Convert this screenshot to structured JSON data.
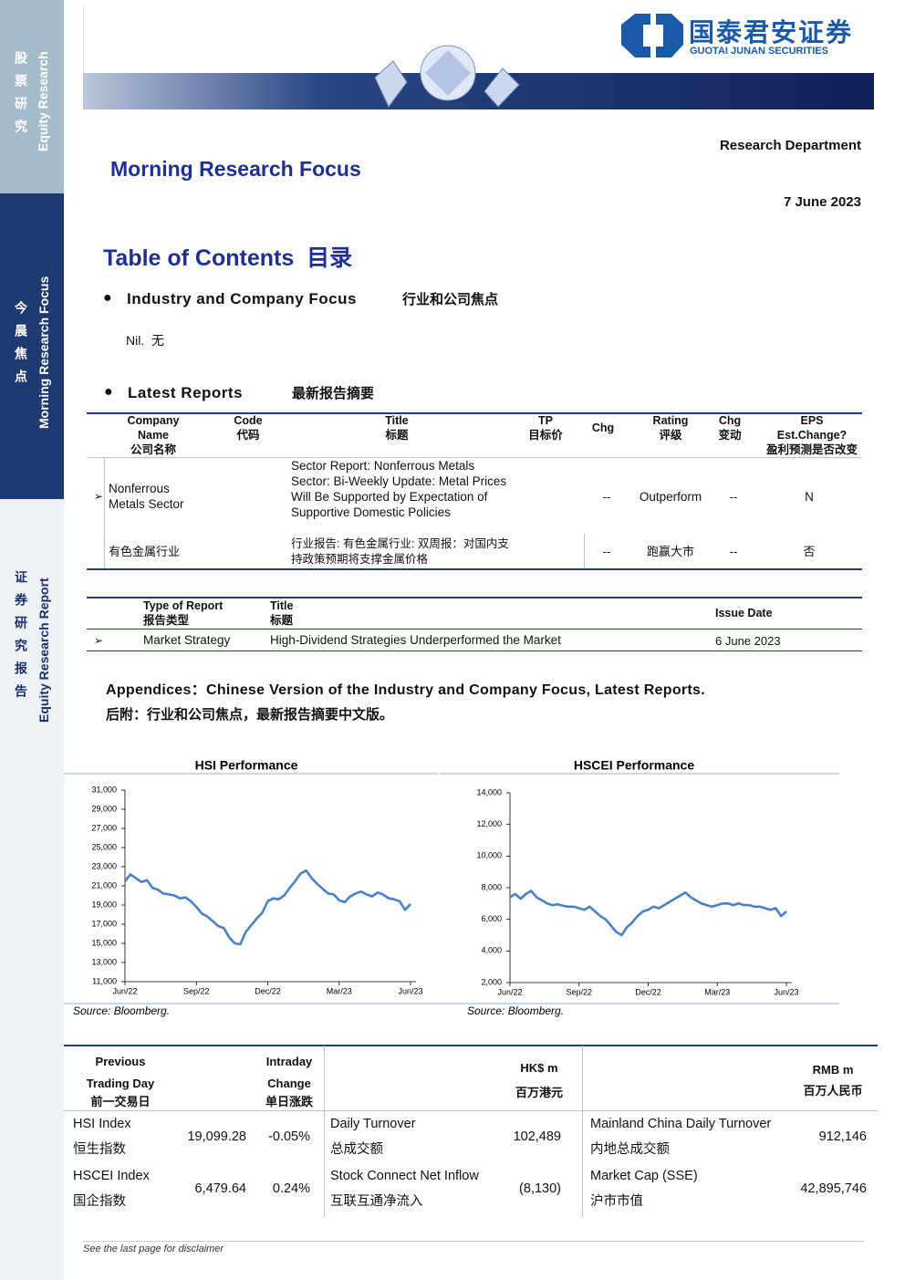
{
  "sidebar": {
    "top_cn": "股票研究",
    "top_en": "Equity Research",
    "mid_cn": "今晨焦点",
    "mid_en": "Morning Research Focus",
    "bottom_cn": "证券研究报告",
    "bottom_en": "Equity Research Report"
  },
  "header": {
    "logo_cn": "国泰君安证券",
    "logo_en": "GUOTAI JUNAN SECURITIES",
    "department": "Research Department",
    "title": "Morning Research Focus",
    "date": "7 June 2023"
  },
  "toc": {
    "title": "Table of Contents",
    "title_cn": "目录",
    "focus_heading": "Industry and Company Focus",
    "focus_heading_cn": "行业和公司焦点",
    "focus_body": "Nil.",
    "focus_body_cn": "无",
    "latest_heading": "Latest Reports",
    "latest_heading_cn": "最新报告摘要"
  },
  "reports_table": {
    "headers": [
      {
        "en": "Company Name",
        "cn": "公司名称"
      },
      {
        "en": "Code",
        "cn": "代码"
      },
      {
        "en": "Title",
        "cn": "标题"
      },
      {
        "en": "TP",
        "cn": "目标价"
      },
      {
        "en": "Chg"
      },
      {
        "en": "Rating",
        "cn": "评级"
      },
      {
        "en": "Chg",
        "cn": "变动"
      },
      {
        "en": "EPS Est.Change?",
        "cn": "盈利预测是否改变"
      }
    ],
    "rows": [
      {
        "company": "Nonferrous Metals Sector",
        "title": "Sector Report: Nonferrous Metals Sector: Bi-Weekly Update: Metal Prices Will Be Supported by Expectation of Supportive Domestic Policies",
        "chg": "--",
        "rating": "Outperform",
        "rating_chg": "--",
        "eps_change": "N"
      },
      {
        "company": "有色金属行业",
        "title": "行业报告: 有色金属行业: 双周报：对国内支持政策预期将支撑金属价格",
        "chg": "--",
        "rating": "跑赢大市",
        "rating_chg": "--",
        "eps_change": "否"
      }
    ]
  },
  "strategy_table": {
    "headers": [
      {
        "en": "Type of Report",
        "cn": "报告类型"
      },
      {
        "en": "Title",
        "cn": "标题"
      },
      {
        "en": "Issue Date"
      }
    ],
    "rows": [
      {
        "type": "Market Strategy",
        "title": "High-Dividend Strategies Underperformed the Market",
        "date": "6 June 2023"
      }
    ]
  },
  "appendices": {
    "en": "Appendices：Chinese Version of the Industry and Company Focus, Latest Reports.",
    "cn": "后附：行业和公司焦点，最新报告摘要中文版。"
  },
  "chart_data": [
    {
      "type": "line",
      "title": "HSI Performance",
      "source": "Source: Bloomberg.",
      "color": "#4a80c8",
      "categories": [
        "Jun/22",
        null,
        null,
        null,
        null,
        null,
        null,
        null,
        null,
        null,
        null,
        null,
        null,
        "Sep/22",
        null,
        null,
        null,
        null,
        null,
        null,
        null,
        null,
        null,
        null,
        null,
        null,
        "Dec/22",
        null,
        null,
        null,
        null,
        null,
        null,
        null,
        null,
        null,
        null,
        null,
        null,
        "Mar/23",
        null,
        null,
        null,
        null,
        null,
        null,
        null,
        null,
        null,
        null,
        null,
        null,
        "Jun/23"
      ],
      "series": [
        {
          "color": "#4a80c8",
          "values": [
            21500,
            22200,
            21800,
            21400,
            21600,
            20800,
            20600,
            20200,
            20100,
            20000,
            19700,
            19800,
            19400,
            18800,
            18100,
            17800,
            17300,
            16800,
            16600,
            15600,
            15000,
            14900,
            16200,
            16900,
            17600,
            18200,
            19400,
            19700,
            19600,
            20000,
            20800,
            21500,
            22300,
            22600,
            21800,
            21200,
            20700,
            20200,
            20100,
            19500,
            19300,
            19900,
            20200,
            20400,
            20100,
            19900,
            20300,
            20100,
            19700,
            19600,
            19400,
            18500,
            19100
          ]
        }
      ],
      "ylim": [
        11000,
        31000
      ],
      "yticks": [
        {
          "value": 11000,
          "label": "11,000"
        },
        {
          "value": 13000,
          "label": "13,000"
        },
        {
          "value": 15000,
          "label": "15,000"
        },
        {
          "value": 17000,
          "label": "17,000"
        },
        {
          "value": 19000,
          "label": "19,000"
        },
        {
          "value": 21000,
          "label": "21,000"
        },
        {
          "value": 23000,
          "label": "23,000"
        },
        {
          "value": 25000,
          "label": "25,000"
        },
        {
          "value": 27000,
          "label": "27,000"
        },
        {
          "value": 29000,
          "label": "29,000"
        },
        {
          "value": 31000,
          "label": "31,000"
        }
      ]
    },
    {
      "type": "line",
      "title": "HSCEI Performance",
      "source": "Source: Bloomberg.",
      "color": "#4a80c8",
      "categories": [
        "Jun/22",
        null,
        null,
        null,
        null,
        null,
        null,
        null,
        null,
        null,
        null,
        null,
        null,
        "Sep/22",
        null,
        null,
        null,
        null,
        null,
        null,
        null,
        null,
        null,
        null,
        null,
        null,
        "Dec/22",
        null,
        null,
        null,
        null,
        null,
        null,
        null,
        null,
        null,
        null,
        null,
        null,
        "Mar/23",
        null,
        null,
        null,
        null,
        null,
        null,
        null,
        null,
        null,
        null,
        null,
        null,
        "Jun/23"
      ],
      "series": [
        {
          "color": "#4a80c8",
          "values": [
            7400,
            7600,
            7300,
            7600,
            7800,
            7400,
            7200,
            7000,
            6900,
            6950,
            6850,
            6800,
            6800,
            6700,
            6600,
            6800,
            6500,
            6200,
            6000,
            5600,
            5200,
            5000,
            5500,
            5800,
            6200,
            6500,
            6600,
            6800,
            6700,
            6900,
            7100,
            7300,
            7500,
            7700,
            7400,
            7200,
            7000,
            6900,
            6800,
            6900,
            7000,
            7000,
            6900,
            7000,
            6900,
            6900,
            6800,
            6800,
            6700,
            6600,
            6700,
            6200,
            6500
          ]
        }
      ],
      "ylim": [
        2000,
        14000
      ],
      "yticks": [
        {
          "value": 2000,
          "label": "2,000"
        },
        {
          "value": 4000,
          "label": "4,000"
        },
        {
          "value": 6000,
          "label": "6,000"
        },
        {
          "value": 8000,
          "label": "8,000"
        },
        {
          "value": 10000,
          "label": "10,000"
        },
        {
          "value": 12000,
          "label": "12,000"
        },
        {
          "value": 14000,
          "label": "14,000"
        }
      ]
    }
  ],
  "market_table": {
    "headers": {
      "previous_en": "Previous Trading Day",
      "previous_cn": "前一交易日",
      "change_en": "Intraday Change",
      "change_cn": "单日涨跌",
      "hk_en": "HK$ m",
      "hk_cn": "百万港元",
      "rmb_en": "RMB m",
      "rmb_cn": "百万人民币"
    },
    "rows": [
      {
        "index": "HSI Index",
        "index_cn": "恒生指数",
        "previous": "19,099.28",
        "change": "-0.05%",
        "metric": "Daily Turnover",
        "metric_cn": "总成交额",
        "hk_value": "102,489",
        "mainland_metric": "Mainland China Daily Turnover",
        "mainland_metric_cn": "内地总成交额",
        "rmb_value": "912,146"
      },
      {
        "index": "HSCEI Index",
        "index_cn": "国企指数",
        "previous": "6,479.64",
        "change": "0.24%",
        "metric": "Stock Connect Net Inflow",
        "metric_cn": "互联互通净流入",
        "hk_value": "(8,130)",
        "mainland_metric": "Market Cap (SSE)",
        "mainland_metric_cn": "沪市市值",
        "rmb_value": "42,895,746"
      }
    ]
  },
  "disclaimer": "See the last page for disclaimer"
}
